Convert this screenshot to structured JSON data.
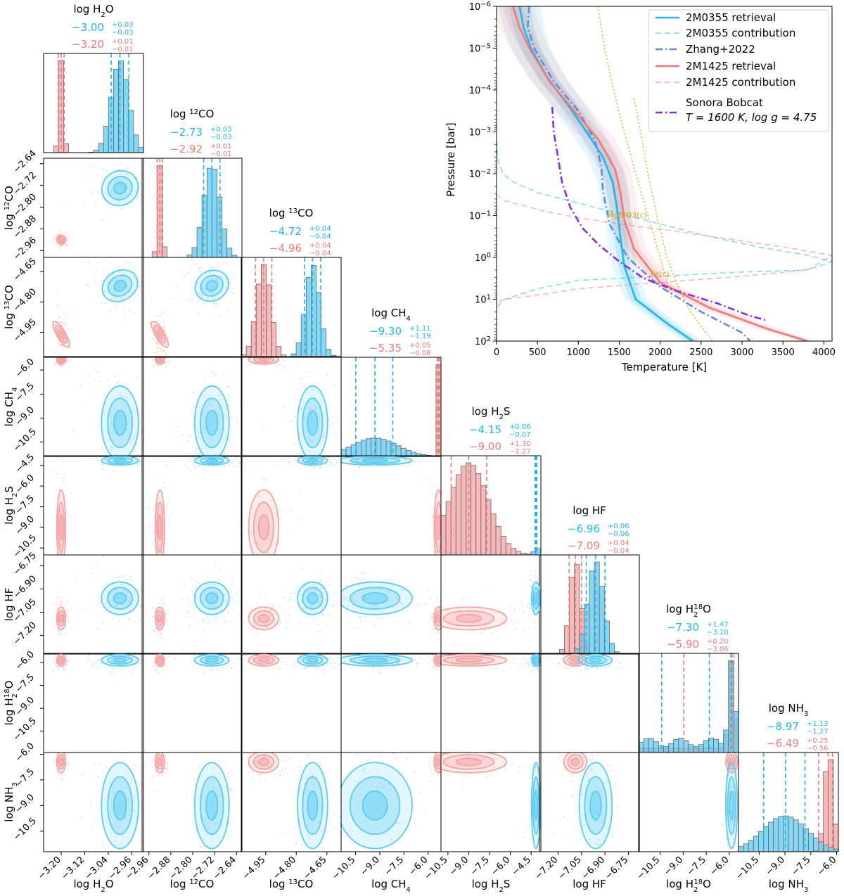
{
  "colors": {
    "blue": "#1fb6ec",
    "red": "#ee7a7a",
    "blue_fill": "#5ccbf2",
    "red_fill": "#f4a3a3",
    "zhang": "#5a8de0",
    "bobcat": "#8a2be2",
    "cond": "#d4a017"
  },
  "chart_data": [
    {
      "type": "corner",
      "id": "corner",
      "params": [
        {
          "key": "h2o",
          "title": "log H2O",
          "title_main": "log H",
          "title_sub": "2",
          "title_tail": "O",
          "blue": {
            "median": "−3.00",
            "up": "+0.03",
            "lo": "−0.03"
          },
          "red": {
            "median": "−3.20",
            "up": "+0.01",
            "lo": "−0.01"
          },
          "range": [
            -3.26,
            -2.92
          ],
          "ticks": [
            -3.2,
            -3.12,
            -3.04,
            -2.96
          ],
          "tick_labels": [
            "−3.20",
            "−3.12",
            "−3.04",
            "−2.96"
          ],
          "blue_q": [
            -3.03,
            -3.0,
            -2.97
          ],
          "red_q": [
            -3.21,
            -3.2,
            -3.19
          ],
          "blue_center": -3.0,
          "blue_sigma": 0.03,
          "red_center": -3.2,
          "red_sigma": 0.006
        },
        {
          "key": "co12",
          "title": "log 12CO",
          "title_main": "log ",
          "title_sup": "12",
          "title_tail": "CO",
          "blue": {
            "median": "−2.73",
            "up": "+0.03",
            "lo": "−0.03"
          },
          "red": {
            "median": "−2.92",
            "up": "+0.01",
            "lo": "−0.01"
          },
          "range": [
            -2.985,
            -2.62
          ],
          "ticks": [
            -2.96,
            -2.88,
            -2.8,
            -2.72,
            -2.64
          ],
          "tick_labels": [
            "−2.96",
            "−2.88",
            "−2.80",
            "−2.72",
            "−2.64"
          ],
          "blue_q": [
            -2.76,
            -2.73,
            -2.7
          ],
          "red_q": [
            -2.93,
            -2.92,
            -2.91
          ],
          "blue_center": -2.73,
          "blue_sigma": 0.03,
          "red_center": -2.92,
          "red_sigma": 0.008
        },
        {
          "key": "co13",
          "title": "log 13CO",
          "title_main": "log ",
          "title_sup": "13",
          "title_tail": "CO",
          "blue": {
            "median": "−4.72",
            "up": "+0.04",
            "lo": "−0.04"
          },
          "red": {
            "median": "−4.96",
            "up": "+0.04",
            "lo": "−0.04"
          },
          "range": [
            -5.07,
            -4.58
          ],
          "ticks": [
            -4.95,
            -4.8,
            -4.65
          ],
          "tick_labels": [
            "−4.95",
            "−4.80",
            "−4.65"
          ],
          "blue_q": [
            -4.76,
            -4.72,
            -4.68
          ],
          "red_q": [
            -5.0,
            -4.96,
            -4.92
          ],
          "blue_center": -4.72,
          "blue_sigma": 0.035,
          "red_center": -4.96,
          "red_sigma": 0.035
        },
        {
          "key": "ch4",
          "title": "log CH4",
          "title_main": "log CH",
          "title_sub": "4",
          "title_tail": "",
          "blue": {
            "median": "−9.30",
            "up": "+1.11",
            "lo": "−1.19"
          },
          "red": {
            "median": "−5.35",
            "up": "+0.05",
            "lo": "−0.08"
          },
          "range": [
            -11.4,
            -5.2
          ],
          "ticks": [
            -10.5,
            -9.0,
            -7.5,
            -6.0
          ],
          "tick_labels": [
            "−10.5",
            "−9.0",
            "−7.5",
            "−6.0"
          ],
          "blue_q": [
            -10.49,
            -9.3,
            -8.19
          ],
          "red_q": [
            -5.43,
            -5.35,
            -5.3
          ],
          "blue_center": -9.3,
          "blue_sigma": 1.1,
          "red_center": -5.35,
          "red_sigma": 0.07
        },
        {
          "key": "h2s",
          "title": "log H2S",
          "title_main": "log H",
          "title_sub": "2",
          "title_tail": "S",
          "blue": {
            "median": "−4.15",
            "up": "+0.06",
            "lo": "−0.07"
          },
          "red": {
            "median": "−9.00",
            "up": "+1.30",
            "lo": "−1.27"
          },
          "range": [
            -11.0,
            -3.8
          ],
          "ticks": [
            -10.5,
            -9.0,
            -7.5,
            -6.0,
            -4.5
          ],
          "tick_labels": [
            "−10.5",
            "−9.0",
            "−7.5",
            "−6.0",
            "−4.5"
          ],
          "blue_q": [
            -4.22,
            -4.15,
            -4.09
          ],
          "red_q": [
            -10.27,
            -9.0,
            -7.7
          ],
          "blue_center": -4.15,
          "blue_sigma": 0.06,
          "red_center": -9.0,
          "red_sigma": 1.3
        },
        {
          "key": "hf",
          "title": "log HF",
          "title_main": "log HF",
          "title_tail": "",
          "blue": {
            "median": "−6.96",
            "up": "+0.06",
            "lo": "−0.06"
          },
          "red": {
            "median": "−7.09",
            "up": "+0.04",
            "lo": "−0.04"
          },
          "range": [
            -7.32,
            -6.68
          ],
          "ticks": [
            -7.2,
            -7.05,
            -6.9,
            -6.75
          ],
          "tick_labels": [
            "−7.20",
            "−7.05",
            "−6.90",
            "−6.75"
          ],
          "blue_q": [
            -7.02,
            -6.96,
            -6.9
          ],
          "red_q": [
            -7.13,
            -7.09,
            -7.05
          ],
          "blue_center": -6.96,
          "blue_sigma": 0.05,
          "red_center": -7.09,
          "red_sigma": 0.035
        },
        {
          "key": "h218o",
          "title": "log H2 18O",
          "title_main": "log H",
          "title_sub": "2",
          "title_sup": "18",
          "title_tail": "O",
          "blue": {
            "median": "−7.30",
            "up": "+1.47",
            "lo": "−3.10"
          },
          "red": {
            "median": "−5.90",
            "up": "+0.20",
            "lo": "−3.06"
          },
          "range": [
            -11.9,
            -5.4
          ],
          "ticks": [
            -10.5,
            -9.0,
            -7.5,
            -6.0
          ],
          "tick_labels": [
            "−10.5",
            "−9.0",
            "−7.5",
            "−6.0"
          ],
          "blue_q": [
            -10.4,
            -7.3,
            -5.83
          ],
          "red_q": [
            -8.96,
            -5.9,
            -5.7
          ],
          "blue_center": -5.85,
          "blue_sigma": 0.18,
          "red_center": -5.85,
          "red_sigma": 0.18
        },
        {
          "key": "nh3",
          "title": "log NH3",
          "title_main": "log NH",
          "title_sub": "3",
          "title_tail": "",
          "blue": {
            "median": "−8.97",
            "up": "+1.13",
            "lo": "−1.27"
          },
          "red": {
            "median": "−6.49",
            "up": "+0.25",
            "lo": "−0.56"
          },
          "range": [
            -11.7,
            -5.9
          ],
          "ticks": [
            -10.5,
            -9.0,
            -7.5,
            -6.0
          ],
          "tick_labels": [
            "−10.5",
            "−9.0",
            "−7.5",
            "−6.0"
          ],
          "blue_q": [
            -10.24,
            -8.97,
            -7.84
          ],
          "red_q": [
            -7.05,
            -6.49,
            -6.24
          ],
          "blue_center": -9.0,
          "blue_sigma": 1.2,
          "red_center": -6.45,
          "red_sigma": 0.3
        }
      ],
      "axis_labels_x": [
        "log H2O",
        "log 12CO",
        "log 13CO",
        "log CH4",
        "log H2S",
        "log HF",
        "log H2 18O",
        "log NH3"
      ]
    },
    {
      "type": "line",
      "id": "pt-profile",
      "title": "",
      "xlabel": "Temperature [K]",
      "ylabel": "Pressure [bar]",
      "xlim": [
        0,
        4100
      ],
      "ylim_log10": [
        -6,
        2
      ],
      "x_ticks": [
        0,
        500,
        1000,
        1500,
        2000,
        2500,
        3000,
        3500,
        4000
      ],
      "x_tick_labels": [
        "0",
        "500",
        "1000",
        "1500",
        "2000",
        "2500",
        "3000",
        "3500",
        "4000"
      ],
      "y_ticks_log10": [
        -6,
        -5,
        -4,
        -3,
        -2,
        -1,
        0,
        1,
        2
      ],
      "y_tick_labels": [
        "10−6",
        "10−5",
        "10−4",
        "10−3",
        "10−2",
        "10−1",
        "100",
        "101",
        "102"
      ],
      "legend_position": "top-right",
      "series": [
        {
          "name": "2M0355 retrieval",
          "style": "solid",
          "color": "blue",
          "T": [
            280,
            330,
            420,
            620,
            850,
            1100,
            1300,
            1420,
            1470,
            1500,
            1560,
            1700,
            2100,
            2400
          ],
          "logP": [
            -6,
            -5.5,
            -5,
            -4.3,
            -3.7,
            -3.0,
            -2.4,
            -1.8,
            -1.2,
            -0.7,
            0.2,
            1.0,
            1.6,
            2.0
          ]
        },
        {
          "name": "2M0355 contribution",
          "style": "dashed",
          "color": "blue",
          "T": [
            0,
            20,
            80,
            200,
            500,
            900,
            1300,
            1700,
            2100,
            2600,
            3200,
            3800,
            4100,
            3800,
            3000,
            2000,
            1000,
            500,
            100,
            0
          ],
          "logP": [
            -2.8,
            -2.3,
            -2.0,
            -1.8,
            -1.55,
            -1.35,
            -1.15,
            -0.95,
            -0.75,
            -0.5,
            -0.25,
            -0.05,
            0.1,
            0.3,
            0.35,
            0.45,
            0.55,
            0.75,
            1.0,
            1.2
          ]
        },
        {
          "name": "Zhang+2022",
          "style": "dashdot",
          "color": "zhang",
          "T": [
            400,
            380,
            460,
            700,
            1000,
            1200,
            1280,
            1300,
            1380,
            1600,
            2000,
            2500,
            3000,
            3100
          ],
          "logP": [
            -6,
            -5.5,
            -5,
            -4.2,
            -3.5,
            -2.8,
            -2.2,
            -1.6,
            -0.8,
            0.0,
            0.7,
            1.3,
            1.8,
            2.0
          ]
        },
        {
          "name": "2M1425 retrieval",
          "style": "solid",
          "color": "red",
          "T": [
            200,
            280,
            400,
            650,
            950,
            1250,
            1450,
            1520,
            1560,
            1680,
            2000,
            2600,
            3300,
            3800
          ],
          "logP": [
            -6,
            -5.5,
            -5,
            -4.2,
            -3.5,
            -2.8,
            -2.1,
            -1.5,
            -0.9,
            -0.2,
            0.6,
            1.2,
            1.7,
            2.0
          ]
        },
        {
          "name": "2M1425 contribution",
          "style": "dashed",
          "color": "red",
          "T": [
            0,
            100,
            300,
            600,
            1000,
            1500,
            2100,
            2800,
            3500,
            4100,
            3800,
            3000,
            2000,
            1000,
            500,
            100,
            0
          ],
          "logP": [
            -1.5,
            -1.35,
            -1.25,
            -1.1,
            -0.95,
            -0.8,
            -0.65,
            -0.45,
            -0.25,
            -0.05,
            0.3,
            0.45,
            0.6,
            0.75,
            0.9,
            1.0,
            1.1
          ]
        },
        {
          "name": "Sonora Bobcat T = 1600 K, log g = 4.75",
          "style": "dashdot",
          "color": "bobcat",
          "T": [
            680,
            700,
            750,
            800,
            900,
            1050,
            1250,
            1500,
            1800,
            2200,
            2700,
            3100,
            3300
          ],
          "logP": [
            -3.6,
            -3.0,
            -2.4,
            -1.8,
            -1.2,
            -0.7,
            -0.3,
            0.1,
            0.5,
            0.8,
            1.1,
            1.4,
            1.5
          ]
        },
        {
          "name": "MgSiO3(c)",
          "style": "dotted",
          "color": "cond",
          "T": [
            1240,
            1320,
            1430,
            1560,
            1700,
            1850,
            2000,
            2150
          ],
          "logP": [
            -6,
            -5,
            -4,
            -3,
            -2,
            -1,
            0,
            1
          ]
        },
        {
          "name": "Fe(c)",
          "style": "dotted",
          "color": "cond",
          "T": [
            1680,
            1760,
            1850,
            1960,
            2080,
            2200,
            2340,
            2480,
            2640
          ],
          "logP": [
            -3.8,
            -3,
            -2,
            -1,
            0,
            0.6,
            1.2,
            1.6,
            2.0
          ]
        }
      ],
      "annotations": [
        "MgSiO3(c)",
        "Fe(c)"
      ],
      "legend": [
        "2M0355 retrieval",
        "2M0355 contribution",
        "Zhang+2022",
        "2M1425 retrieval",
        "2M1425 contribution",
        "Sonora Bobcat",
        "T = 1600 K, log g = 4.75"
      ]
    }
  ]
}
